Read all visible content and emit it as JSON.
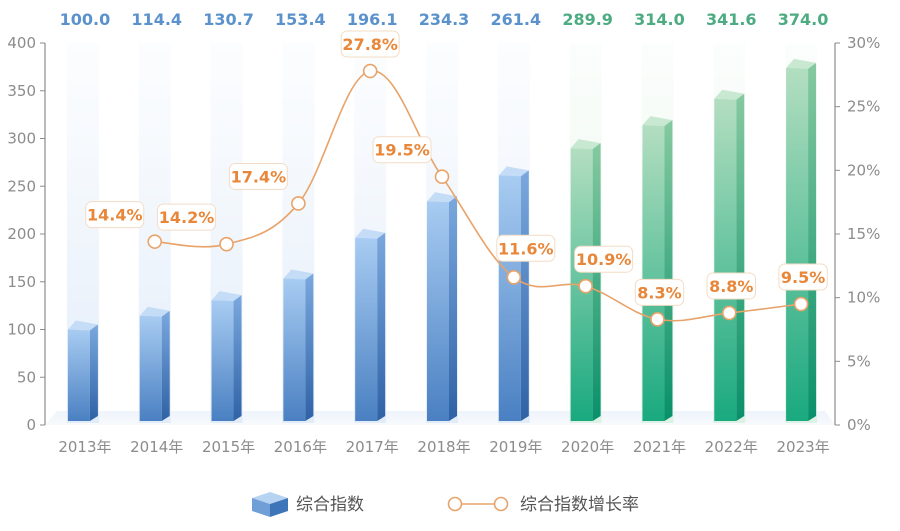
{
  "chart_data": {
    "type": "bar+line",
    "categories": [
      "2013年",
      "2014年",
      "2015年",
      "2016年",
      "2017年",
      "2018年",
      "2019年",
      "2020年",
      "2021年",
      "2022年",
      "2023年"
    ],
    "series": [
      {
        "name": "综合指数",
        "type": "bar",
        "axis": "left",
        "values": [
          100.0,
          114.4,
          130.7,
          153.4,
          196.1,
          234.3,
          261.4,
          289.9,
          314.0,
          341.6,
          374.0
        ],
        "labels": [
          "100.0",
          "114.4",
          "130.7",
          "153.4",
          "196.1",
          "234.3",
          "261.4",
          "289.9",
          "314.0",
          "341.6",
          "374.0"
        ]
      },
      {
        "name": "综合指数增长率",
        "type": "line",
        "axis": "right",
        "values": [
          null,
          14.4,
          14.2,
          17.4,
          27.8,
          19.5,
          11.6,
          10.9,
          8.3,
          8.8,
          9.5
        ],
        "labels": [
          "",
          "14.4%",
          "14.2%",
          "17.4%",
          "27.8%",
          "19.5%",
          "11.6%",
          "10.9%",
          "8.3%",
          "8.8%",
          "9.5%"
        ]
      }
    ],
    "y_left": {
      "range": [
        0,
        400
      ],
      "ticks": [
        "0",
        "50",
        "100",
        "150",
        "200",
        "250",
        "300",
        "350",
        "400"
      ]
    },
    "y_right": {
      "range": [
        0,
        30
      ],
      "ticks": [
        "0%",
        "5%",
        "10%",
        "15%",
        "20%",
        "25%",
        "30%"
      ]
    },
    "colors": {
      "blue_top": "#9ec3ee",
      "blue_bottom": "#3e74b8",
      "green_top": "#a7d8b5",
      "green_bottom": "#0ea378",
      "blue_label": "#5b92cc",
      "green_label": "#4dab82",
      "line": "#e8a36a",
      "rate_label": "#e8873a",
      "axis": "#8c8c8c"
    },
    "green_from_index": 7,
    "legend": {
      "position": "bottom-center"
    }
  }
}
